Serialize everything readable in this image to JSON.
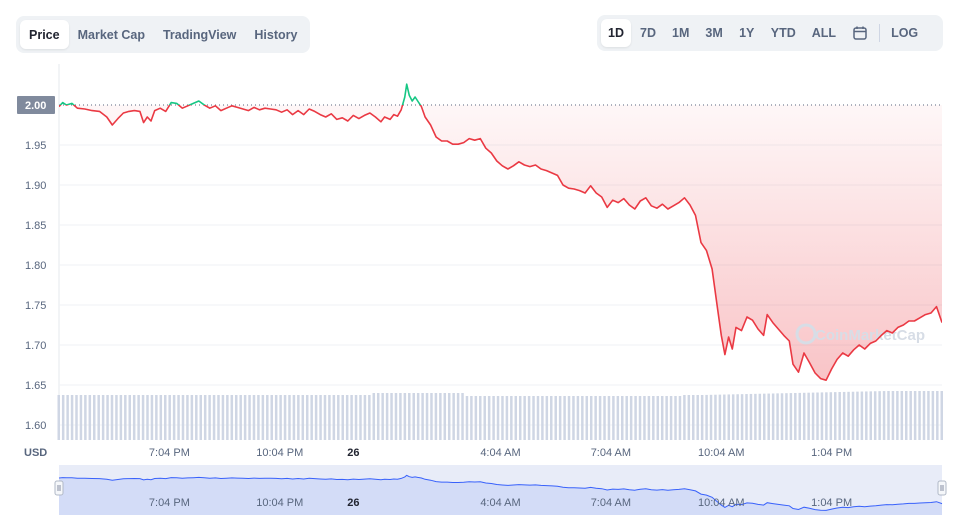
{
  "tabs": [
    {
      "label": "Price",
      "active": true
    },
    {
      "label": "Market Cap",
      "active": false
    },
    {
      "label": "TradingView",
      "active": false
    },
    {
      "label": "History",
      "active": false
    }
  ],
  "ranges": [
    {
      "label": "1D",
      "active": true
    },
    {
      "label": "7D",
      "active": false
    },
    {
      "label": "1M",
      "active": false
    },
    {
      "label": "3M",
      "active": false
    },
    {
      "label": "1Y",
      "active": false
    },
    {
      "label": "YTD",
      "active": false
    },
    {
      "label": "ALL",
      "active": false
    }
  ],
  "calendar_icon": "calendar-icon",
  "log_label": "LOG",
  "watermark": "CoinMarketCap",
  "colors": {
    "up": "#16c784",
    "down": "#ea3943",
    "volume": "#cfd6e4",
    "nav_line": "#3861fb",
    "current_label_bg": "#808a9d"
  },
  "chart_data": {
    "type": "line",
    "currency_label": "USD",
    "y_ticks": [
      "1.60",
      "1.65",
      "1.70",
      "1.75",
      "1.80",
      "1.85",
      "1.90",
      "1.95",
      "2.00"
    ],
    "ylim": [
      1.6,
      2.03
    ],
    "reference_value": 2.0,
    "reference_label": "2.00",
    "x_ticks": [
      {
        "label": "7:04 PM",
        "t": 3,
        "bold": false
      },
      {
        "label": "10:04 PM",
        "t": 6,
        "bold": false
      },
      {
        "label": "26",
        "t": 8,
        "bold": true
      },
      {
        "label": "4:04 AM",
        "t": 12,
        "bold": false
      },
      {
        "label": "7:04 AM",
        "t": 15,
        "bold": false
      },
      {
        "label": "10:04 AM",
        "t": 18,
        "bold": false
      },
      {
        "label": "1:04 PM",
        "t": 21,
        "bold": false
      }
    ],
    "x_start": 0,
    "x_end": 24,
    "series": [
      {
        "points": [
          [
            0.0,
            1.998
          ],
          [
            0.1,
            2.003
          ],
          [
            0.2,
            2.0
          ],
          [
            0.35,
            2.002
          ],
          [
            0.5,
            1.996
          ],
          [
            0.7,
            1.995
          ],
          [
            0.9,
            1.993
          ],
          [
            1.1,
            1.992
          ],
          [
            1.3,
            1.985
          ],
          [
            1.45,
            1.975
          ],
          [
            1.6,
            1.983
          ],
          [
            1.75,
            1.99
          ],
          [
            1.9,
            1.992
          ],
          [
            2.05,
            1.993
          ],
          [
            2.2,
            1.992
          ],
          [
            2.3,
            1.978
          ],
          [
            2.4,
            1.985
          ],
          [
            2.5,
            1.98
          ],
          [
            2.6,
            1.993
          ],
          [
            2.75,
            1.996
          ],
          [
            2.9,
            1.992
          ],
          [
            3.05,
            2.003
          ],
          [
            3.2,
            2.002
          ],
          [
            3.35,
            1.996
          ],
          [
            3.5,
            1.999
          ],
          [
            3.65,
            2.002
          ],
          [
            3.8,
            2.005
          ],
          [
            3.95,
            2.0
          ],
          [
            4.1,
            1.996
          ],
          [
            4.25,
            1.999
          ],
          [
            4.4,
            1.993
          ],
          [
            4.55,
            1.996
          ],
          [
            4.7,
            1.999
          ],
          [
            4.85,
            1.997
          ],
          [
            5.0,
            1.995
          ],
          [
            5.15,
            1.993
          ],
          [
            5.3,
            1.997
          ],
          [
            5.45,
            1.994
          ],
          [
            5.6,
            1.996
          ],
          [
            5.75,
            1.995
          ],
          [
            5.9,
            1.994
          ],
          [
            6.05,
            1.991
          ],
          [
            6.2,
            1.994
          ],
          [
            6.35,
            1.988
          ],
          [
            6.5,
            1.993
          ],
          [
            6.65,
            1.988
          ],
          [
            6.8,
            1.995
          ],
          [
            6.95,
            1.992
          ],
          [
            7.1,
            1.988
          ],
          [
            7.25,
            1.985
          ],
          [
            7.4,
            1.989
          ],
          [
            7.55,
            1.982
          ],
          [
            7.7,
            1.984
          ],
          [
            7.85,
            1.98
          ],
          [
            8.0,
            1.987
          ],
          [
            8.15,
            1.983
          ],
          [
            8.3,
            1.987
          ],
          [
            8.45,
            1.99
          ],
          [
            8.6,
            1.985
          ],
          [
            8.75,
            1.979
          ],
          [
            8.85,
            1.985
          ],
          [
            9.0,
            1.982
          ],
          [
            9.1,
            1.988
          ],
          [
            9.2,
            1.986
          ],
          [
            9.3,
            1.994
          ],
          [
            9.4,
            2.01
          ],
          [
            9.45,
            2.026
          ],
          [
            9.52,
            2.012
          ],
          [
            9.6,
            2.005
          ],
          [
            9.68,
            2.01
          ],
          [
            9.75,
            2.005
          ],
          [
            9.85,
            1.998
          ],
          [
            9.95,
            1.985
          ],
          [
            10.1,
            1.975
          ],
          [
            10.25,
            1.96
          ],
          [
            10.4,
            1.955
          ],
          [
            10.55,
            1.955
          ],
          [
            10.7,
            1.951
          ],
          [
            10.85,
            1.951
          ],
          [
            11.0,
            1.953
          ],
          [
            11.15,
            1.958
          ],
          [
            11.3,
            1.956
          ],
          [
            11.45,
            1.958
          ],
          [
            11.6,
            1.946
          ],
          [
            11.75,
            1.94
          ],
          [
            11.9,
            1.93
          ],
          [
            12.05,
            1.924
          ],
          [
            12.2,
            1.92
          ],
          [
            12.35,
            1.924
          ],
          [
            12.5,
            1.929
          ],
          [
            12.65,
            1.925
          ],
          [
            12.8,
            1.923
          ],
          [
            12.95,
            1.925
          ],
          [
            13.1,
            1.92
          ],
          [
            13.25,
            1.918
          ],
          [
            13.4,
            1.915
          ],
          [
            13.55,
            1.912
          ],
          [
            13.7,
            1.9
          ],
          [
            13.85,
            1.896
          ],
          [
            14.0,
            1.895
          ],
          [
            14.15,
            1.893
          ],
          [
            14.3,
            1.89
          ],
          [
            14.45,
            1.899
          ],
          [
            14.6,
            1.89
          ],
          [
            14.75,
            1.885
          ],
          [
            14.9,
            1.872
          ],
          [
            15.05,
            1.881
          ],
          [
            15.2,
            1.878
          ],
          [
            15.35,
            1.883
          ],
          [
            15.5,
            1.875
          ],
          [
            15.65,
            1.87
          ],
          [
            15.8,
            1.88
          ],
          [
            15.95,
            1.884
          ],
          [
            16.1,
            1.874
          ],
          [
            16.25,
            1.871
          ],
          [
            16.4,
            1.876
          ],
          [
            16.55,
            1.87
          ],
          [
            16.7,
            1.874
          ],
          [
            16.85,
            1.878
          ],
          [
            17.0,
            1.884
          ],
          [
            17.15,
            1.875
          ],
          [
            17.3,
            1.862
          ],
          [
            17.45,
            1.828
          ],
          [
            17.6,
            1.818
          ],
          [
            17.75,
            1.795
          ],
          [
            17.9,
            1.745
          ],
          [
            18.0,
            1.712
          ],
          [
            18.1,
            1.688
          ],
          [
            18.2,
            1.71
          ],
          [
            18.3,
            1.695
          ],
          [
            18.4,
            1.722
          ],
          [
            18.55,
            1.718
          ],
          [
            18.7,
            1.735
          ],
          [
            18.85,
            1.731
          ],
          [
            19.0,
            1.72
          ],
          [
            19.15,
            1.712
          ],
          [
            19.25,
            1.738
          ],
          [
            19.4,
            1.728
          ],
          [
            19.55,
            1.72
          ],
          [
            19.7,
            1.712
          ],
          [
            19.85,
            1.705
          ],
          [
            19.95,
            1.676
          ],
          [
            20.1,
            1.666
          ],
          [
            20.25,
            1.69
          ],
          [
            20.4,
            1.678
          ],
          [
            20.55,
            1.665
          ],
          [
            20.7,
            1.658
          ],
          [
            20.85,
            1.656
          ],
          [
            21.0,
            1.67
          ],
          [
            21.15,
            1.682
          ],
          [
            21.3,
            1.69
          ],
          [
            21.45,
            1.686
          ],
          [
            21.6,
            1.694
          ],
          [
            21.75,
            1.7
          ],
          [
            21.9,
            1.695
          ],
          [
            22.05,
            1.702
          ],
          [
            22.2,
            1.705
          ],
          [
            22.35,
            1.712
          ],
          [
            22.5,
            1.718
          ],
          [
            22.65,
            1.715
          ],
          [
            22.8,
            1.722
          ],
          [
            22.95,
            1.725
          ],
          [
            23.1,
            1.73
          ],
          [
            23.25,
            1.73
          ],
          [
            23.4,
            1.734
          ],
          [
            23.55,
            1.738
          ],
          [
            23.7,
            1.74
          ],
          [
            23.85,
            1.748
          ],
          [
            24.0,
            1.728
          ]
        ]
      }
    ]
  }
}
